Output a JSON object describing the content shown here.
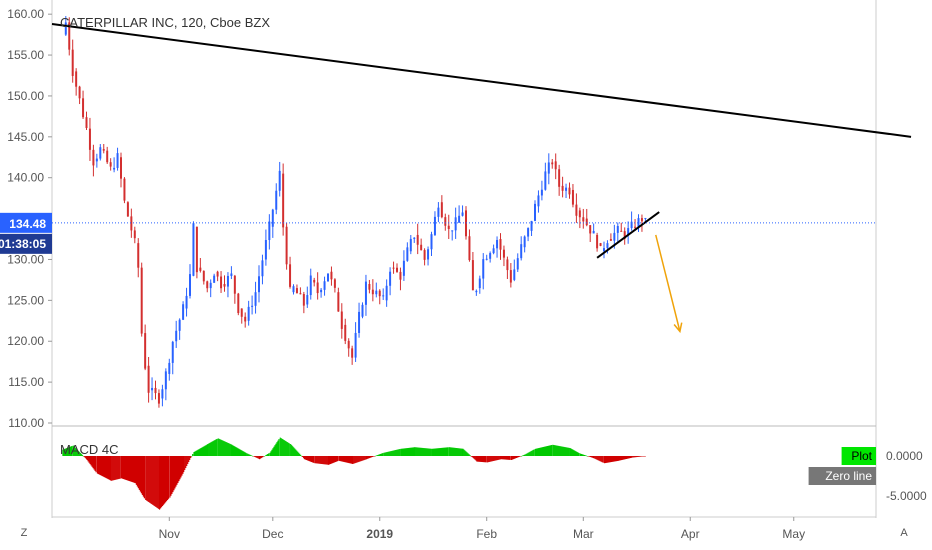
{
  "chart_data": {
    "type": "candlestick",
    "title": "CATERPILLAR INC, 120, Cboe BZX",
    "price_axis": {
      "ylim": [
        110,
        161
      ],
      "ticks": [
        "160.00",
        "155.00",
        "150.00",
        "145.00",
        "140.00",
        "135.00",
        "130.00",
        "125.00",
        "120.00",
        "115.00",
        "110.00"
      ]
    },
    "time_axis": {
      "labels": [
        "Nov",
        "Dec",
        "2019",
        "Feb",
        "Mar",
        "Apr",
        "May"
      ]
    },
    "last_price": {
      "label": "134.48",
      "value": 134.48,
      "countdown": "01:38:05",
      "color": "#2962ff"
    },
    "colors": {
      "up": "#2962ff",
      "down": "#d32f2f",
      "trendline": "#000000",
      "arrow": "#f0a30a",
      "macd_up": "#00c800",
      "macd_down": "#d00000"
    },
    "price_path": [
      [
        "2018-10-01",
        157.5
      ],
      [
        "2018-10-02",
        159.0
      ],
      [
        "2018-10-04",
        153.0
      ],
      [
        "2018-10-08",
        146.0
      ],
      [
        "2018-10-10",
        142.0
      ],
      [
        "2018-10-12",
        143.5
      ],
      [
        "2018-10-15",
        141.0
      ],
      [
        "2018-10-17",
        142.5
      ],
      [
        "2018-10-19",
        137.0
      ],
      [
        "2018-10-22",
        132.0
      ],
      [
        "2018-10-23",
        129.0
      ],
      [
        "2018-10-24",
        121.0
      ],
      [
        "2018-10-25",
        117.0
      ],
      [
        "2018-10-26",
        114.0
      ],
      [
        "2018-10-29",
        113.0
      ],
      [
        "2018-10-31",
        116.0
      ],
      [
        "2018-11-02",
        120.0
      ],
      [
        "2018-11-05",
        124.0
      ],
      [
        "2018-11-07",
        128.0
      ],
      [
        "2018-11-08",
        134.0
      ],
      [
        "2018-11-09",
        129.0
      ],
      [
        "2018-11-12",
        126.5
      ],
      [
        "2018-11-14",
        128.5
      ],
      [
        "2018-11-16",
        127.0
      ],
      [
        "2018-11-19",
        128.0
      ],
      [
        "2018-11-21",
        124.0
      ],
      [
        "2018-11-23",
        122.5
      ],
      [
        "2018-11-26",
        126.0
      ],
      [
        "2018-11-28",
        130.0
      ],
      [
        "2018-11-30",
        134.0
      ],
      [
        "2018-12-03",
        140.5
      ],
      [
        "2018-12-04",
        134.0
      ],
      [
        "2018-12-06",
        126.0
      ],
      [
        "2018-12-07",
        126.5
      ],
      [
        "2018-12-10",
        124.5
      ],
      [
        "2018-12-12",
        127.5
      ],
      [
        "2018-12-14",
        126.0
      ],
      [
        "2018-12-17",
        128.5
      ],
      [
        "2018-12-19",
        126.0
      ],
      [
        "2018-12-21",
        122.0
      ],
      [
        "2018-12-24",
        118.0
      ],
      [
        "2018-12-26",
        123.0
      ],
      [
        "2018-12-28",
        127.0
      ],
      [
        "2019-01-02",
        125.0
      ],
      [
        "2019-01-04",
        129.0
      ],
      [
        "2019-01-07",
        128.0
      ],
      [
        "2019-01-09",
        131.0
      ],
      [
        "2019-01-11",
        133.0
      ],
      [
        "2019-01-14",
        130.0
      ],
      [
        "2019-01-16",
        133.0
      ],
      [
        "2019-01-18",
        137.0
      ],
      [
        "2019-01-21",
        133.5
      ],
      [
        "2019-01-23",
        134.5
      ],
      [
        "2019-01-25",
        136.0
      ],
      [
        "2019-01-28",
        126.0
      ],
      [
        "2019-01-29",
        126.5
      ],
      [
        "2019-01-31",
        130.0
      ],
      [
        "2019-02-04",
        132.5
      ],
      [
        "2019-02-06",
        130.0
      ],
      [
        "2019-02-08",
        127.5
      ],
      [
        "2019-02-11",
        131.5
      ],
      [
        "2019-02-13",
        133.5
      ],
      [
        "2019-02-15",
        136.5
      ],
      [
        "2019-02-18",
        140.5
      ],
      [
        "2019-02-20",
        142.0
      ],
      [
        "2019-02-22",
        139.0
      ],
      [
        "2019-02-25",
        138.5
      ],
      [
        "2019-02-27",
        136.0
      ],
      [
        "2019-03-01",
        135.0
      ],
      [
        "2019-03-04",
        133.0
      ],
      [
        "2019-03-05",
        132.0
      ],
      [
        "2019-03-06",
        131.0
      ],
      [
        "2019-03-08",
        132.5
      ],
      [
        "2019-03-11",
        133.5
      ],
      [
        "2019-03-13",
        133.0
      ],
      [
        "2019-03-15",
        134.0
      ],
      [
        "2019-03-18",
        135.0
      ],
      [
        "2019-03-19",
        134.48
      ]
    ],
    "trendlines": [
      {
        "name": "",
        "from": [
          "2018-09-28",
          158.8
        ],
        "to": [
          "2019-06-04",
          145.0
        ]
      },
      {
        "name": "",
        "from": [
          "2019-03-05",
          130.2
        ],
        "to": [
          "2019-03-23",
          135.8
        ]
      }
    ],
    "projection_arrow": {
      "from": [
        "2019-03-22",
        133.0
      ],
      "to": [
        "2019-03-29",
        121.2
      ]
    },
    "indicator": {
      "label": "MACD 4C",
      "ylim": [
        -7,
        3.5
      ],
      "ticks": [
        "0.0000",
        "-5.0000"
      ],
      "legend": [
        {
          "label": "Plot",
          "color": "#00e600"
        },
        {
          "label": "Zero line",
          "color": "#777777"
        }
      ],
      "histogram": [
        [
          "2018-10-01",
          0.8
        ],
        [
          "2018-10-04",
          1.3
        ],
        [
          "2018-10-08",
          -0.5
        ],
        [
          "2018-10-11",
          -2.2
        ],
        [
          "2018-10-15",
          -3.1
        ],
        [
          "2018-10-18",
          -2.8
        ],
        [
          "2018-10-22",
          -3.4
        ],
        [
          "2018-10-25",
          -5.5
        ],
        [
          "2018-10-29",
          -6.7
        ],
        [
          "2018-11-01",
          -5.2
        ],
        [
          "2018-11-05",
          -2.0
        ],
        [
          "2018-11-08",
          0.5
        ],
        [
          "2018-11-12",
          1.5
        ],
        [
          "2018-11-15",
          2.2
        ],
        [
          "2018-11-19",
          1.4
        ],
        [
          "2018-11-23",
          0.4
        ],
        [
          "2018-11-27",
          -0.4
        ],
        [
          "2018-11-30",
          0.4
        ],
        [
          "2018-12-03",
          2.3
        ],
        [
          "2018-12-06",
          1.5
        ],
        [
          "2018-12-10",
          -0.4
        ],
        [
          "2018-12-13",
          -0.9
        ],
        [
          "2018-12-17",
          -1.1
        ],
        [
          "2018-12-20",
          -0.6
        ],
        [
          "2018-12-24",
          -1.0
        ],
        [
          "2018-12-28",
          -0.4
        ],
        [
          "2019-01-02",
          0.4
        ],
        [
          "2019-01-07",
          0.9
        ],
        [
          "2019-01-11",
          1.1
        ],
        [
          "2019-01-16",
          0.9
        ],
        [
          "2019-01-21",
          1.1
        ],
        [
          "2019-01-25",
          0.9
        ],
        [
          "2019-01-29",
          -0.7
        ],
        [
          "2019-02-01",
          -0.8
        ],
        [
          "2019-02-05",
          -0.4
        ],
        [
          "2019-02-08",
          -0.5
        ],
        [
          "2019-02-12",
          0.2
        ],
        [
          "2019-02-15",
          0.9
        ],
        [
          "2019-02-20",
          1.4
        ],
        [
          "2019-02-25",
          1.0
        ],
        [
          "2019-02-28",
          0.3
        ],
        [
          "2019-03-04",
          -0.3
        ],
        [
          "2019-03-07",
          -0.9
        ],
        [
          "2019-03-11",
          -0.6
        ],
        [
          "2019-03-15",
          -0.2
        ],
        [
          "2019-03-19",
          0.0
        ]
      ]
    }
  },
  "controls": {
    "left_button": "Z",
    "right_button": "A"
  }
}
